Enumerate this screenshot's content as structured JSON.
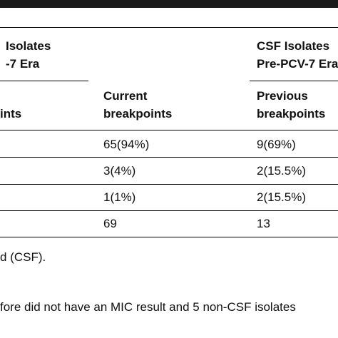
{
  "header": {
    "col1_line1": "Isolates",
    "col1_line2": "-7 Era",
    "col2_line1": "CSF Isolates",
    "col2_line2": "Pre-PCV-7 Era"
  },
  "subheader": {
    "col0_line2": "ints",
    "col1_line1": "Current",
    "col1_line2": "breakpoints",
    "col2_line1": "Previous",
    "col2_line2": "breakpoints"
  },
  "rows": [
    {
      "col1": "65(94%)",
      "col2": "9(69%)"
    },
    {
      "col1": "3(4%)",
      "col2": "2(15.5%)"
    },
    {
      "col1": "1(1%)",
      "col2": "2(15.5%)"
    },
    {
      "col1": "69",
      "col2": "13"
    }
  ],
  "footnotes": {
    "line1": "d (CSF).",
    "line2": "fore did not have an MIC result and 5 non-CSF isolates"
  }
}
